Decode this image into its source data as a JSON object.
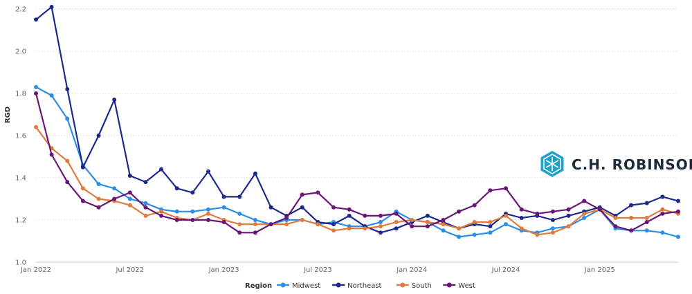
{
  "chart_data": {
    "type": "line",
    "title": "",
    "xlabel": "",
    "ylabel": "RGD",
    "ylim": [
      1.0,
      2.2
    ],
    "yticks": [
      "1.0",
      "1.2",
      "1.4",
      "1.6",
      "1.8",
      "2.0",
      "2.2"
    ],
    "xticks": [
      "Jan 2022",
      "Jul 2022",
      "Jan 2023",
      "Jul 2023",
      "Jan 2024",
      "Jul 2024",
      "Jan 2025"
    ],
    "x": [
      "2022-01",
      "2022-02",
      "2022-03",
      "2022-04",
      "2022-05",
      "2022-06",
      "2022-07",
      "2022-08",
      "2022-09",
      "2022-10",
      "2022-11",
      "2022-12",
      "2023-01",
      "2023-02",
      "2023-03",
      "2023-04",
      "2023-05",
      "2023-06",
      "2023-07",
      "2023-08",
      "2023-09",
      "2023-10",
      "2023-11",
      "2023-12",
      "2024-01",
      "2024-02",
      "2024-03",
      "2024-04",
      "2024-05",
      "2024-06",
      "2024-07",
      "2024-08",
      "2024-09",
      "2024-10",
      "2024-11",
      "2024-12",
      "2025-01",
      "2025-02",
      "2025-03",
      "2025-04",
      "2025-05",
      "2025-06"
    ],
    "grid": true,
    "legend_title": "Region",
    "legend_position": "bottom",
    "series": [
      {
        "name": "Midwest",
        "color": "#2b8ee6",
        "values": [
          1.83,
          1.79,
          1.68,
          1.46,
          1.37,
          1.35,
          1.3,
          1.28,
          1.25,
          1.24,
          1.24,
          1.25,
          1.26,
          1.23,
          1.2,
          1.18,
          1.2,
          1.2,
          1.18,
          1.19,
          1.17,
          1.17,
          1.19,
          1.24,
          1.2,
          1.19,
          1.15,
          1.12,
          1.13,
          1.14,
          1.18,
          1.15,
          1.14,
          1.16,
          1.17,
          1.21,
          1.25,
          1.16,
          1.15,
          1.15,
          1.14,
          1.12
        ]
      },
      {
        "name": "Northeast",
        "color": "#1b2a8c",
        "values": [
          2.15,
          2.21,
          1.82,
          1.45,
          1.6,
          1.77,
          1.41,
          1.38,
          1.44,
          1.35,
          1.33,
          1.43,
          1.31,
          1.31,
          1.42,
          1.26,
          1.22,
          1.26,
          1.19,
          1.18,
          1.22,
          1.17,
          1.14,
          1.16,
          1.19,
          1.22,
          1.19,
          1.16,
          1.18,
          1.17,
          1.23,
          1.21,
          1.22,
          1.2,
          1.22,
          1.24,
          1.26,
          1.22,
          1.27,
          1.28,
          1.31,
          1.29
        ]
      },
      {
        "name": "South",
        "color": "#e07b3c",
        "values": [
          1.64,
          1.54,
          1.48,
          1.35,
          1.3,
          1.29,
          1.27,
          1.22,
          1.24,
          1.21,
          1.2,
          1.23,
          1.2,
          1.18,
          1.18,
          1.18,
          1.18,
          1.2,
          1.18,
          1.15,
          1.16,
          1.16,
          1.17,
          1.19,
          1.2,
          1.19,
          1.18,
          1.16,
          1.19,
          1.19,
          1.22,
          1.16,
          1.13,
          1.14,
          1.17,
          1.23,
          1.25,
          1.21,
          1.21,
          1.21,
          1.25,
          1.23
        ]
      },
      {
        "name": "West",
        "color": "#6a1678",
        "values": [
          1.8,
          1.51,
          1.38,
          1.29,
          1.26,
          1.3,
          1.33,
          1.26,
          1.22,
          1.2,
          1.2,
          1.2,
          1.19,
          1.14,
          1.14,
          1.18,
          1.21,
          1.32,
          1.33,
          1.26,
          1.25,
          1.22,
          1.22,
          1.23,
          1.17,
          1.17,
          1.2,
          1.24,
          1.27,
          1.34,
          1.35,
          1.25,
          1.23,
          1.24,
          1.25,
          1.29,
          1.25,
          1.17,
          1.15,
          1.19,
          1.23,
          1.24
        ]
      }
    ]
  },
  "brand": {
    "name": "C.H. ROBINSON",
    "logo_icon": "hexagon-snowflake-icon",
    "color": "#1ea2c8"
  }
}
